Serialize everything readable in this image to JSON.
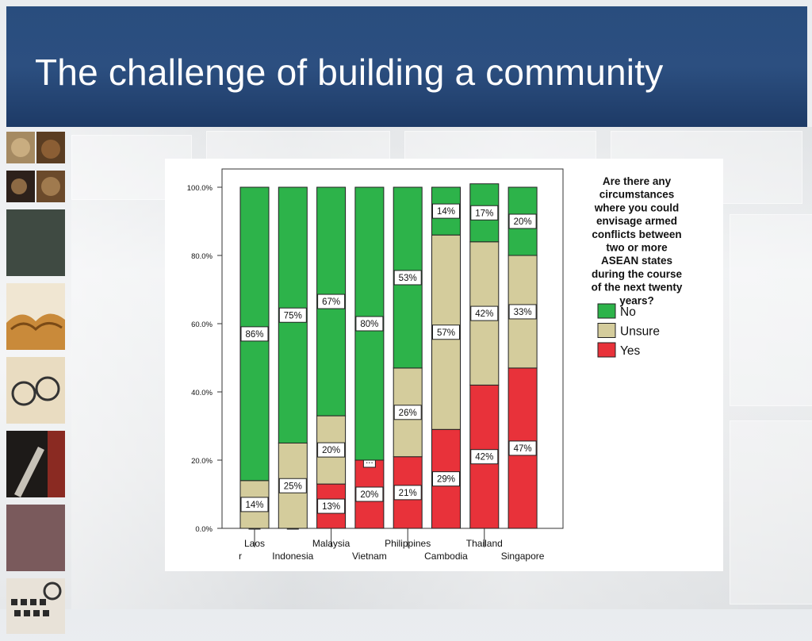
{
  "slide": {
    "title": "The challenge of building a community"
  },
  "decor": {
    "thumbnail_icons": [
      "coins-icon",
      "coins-icon",
      "chalkboard-icon",
      "open-book-icon",
      "eyeglasses-icon",
      "pen-nib-icon",
      "mauve-swatch-icon",
      "keyboard-icon"
    ]
  },
  "colors": {
    "title_bar": "#2a4d7e",
    "no": "#2db34a",
    "unsure": "#d4cc9c",
    "yes": "#e8323a"
  },
  "chart_data": {
    "type": "bar",
    "stacked": true,
    "percent": true,
    "question": "Are there any circumstances where you could envisage armed conflicts between two or more ASEAN states during the course of the next twenty years?",
    "question_lines": [
      "Are there any",
      "circumstances",
      "where you could",
      "envisage armed",
      "conflicts between",
      "two or more",
      "ASEAN states",
      "during the course",
      "of the next twenty",
      "years?"
    ],
    "categories": [
      "Laos",
      "Indonesia",
      "Malaysia",
      "Vietnam",
      "Philippines",
      "Cambodia",
      "Thailand",
      "Singapore"
    ],
    "x_label_rows": [
      1,
      2,
      1,
      2,
      1,
      2,
      1,
      2
    ],
    "x_label_fragment": "r",
    "series": [
      {
        "name": "Yes",
        "values": [
          0,
          0,
          13,
          20,
          21,
          29,
          42,
          47
        ]
      },
      {
        "name": "Unsure",
        "values": [
          14,
          25,
          20,
          0,
          26,
          57,
          42,
          33
        ]
      },
      {
        "name": "No",
        "values": [
          86,
          75,
          67,
          80,
          53,
          14,
          17,
          20
        ]
      }
    ],
    "data_labels": {
      "Yes": [
        "",
        "",
        "13%",
        "20%",
        "21%",
        "29%",
        "42%",
        "47%"
      ],
      "Unsure": [
        "14%",
        "25%",
        "20%",
        "...",
        "26%",
        "57%",
        "42%",
        "33%"
      ],
      "No": [
        "86%",
        "75%",
        "67%",
        "80%",
        "53%",
        "14%",
        "17%",
        "20%"
      ]
    },
    "legend": [
      "No",
      "Unsure",
      "Yes"
    ],
    "legend_position": "right",
    "y_ticks": [
      "0.0%",
      "20.0%",
      "40.0%",
      "60.0%",
      "80.0%",
      "100.0%"
    ],
    "ylim": [
      0,
      100
    ],
    "grid": false
  }
}
